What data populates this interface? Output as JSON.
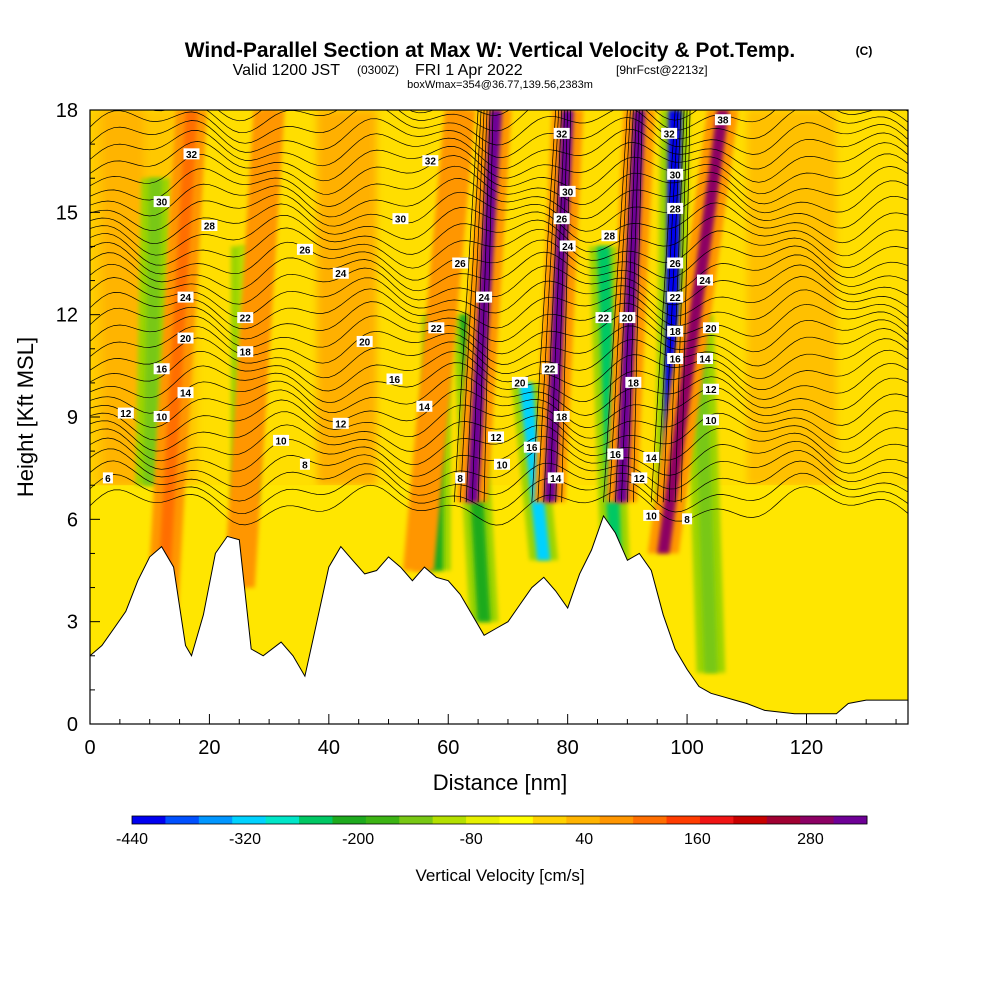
{
  "header": {
    "title": "Wind-Parallel Section at Max W: Vertical Velocity & Pot.Temp.",
    "copyright": "(C)",
    "valid_prefix": "Valid 1200 JST",
    "valid_utc": "(0300Z)",
    "valid_date": "FRI 1 Apr 2022",
    "forecast": "[9hrFcst@2213z]",
    "box_info": "boxWmax=354@36.77,139.56,2383m"
  },
  "chart_data": {
    "type": "heatmap",
    "title": "Wind-Parallel Section at Max W: Vertical Velocity & Pot.Temp.",
    "xlabel": "Distance [nm]",
    "ylabel": "Height [Kft MSL]",
    "xlim": [
      0,
      137
    ],
    "ylim": [
      0,
      18
    ],
    "x_ticks": [
      "0",
      "20",
      "40",
      "60",
      "80",
      "100",
      "120"
    ],
    "x_tick_values": [
      0,
      20,
      40,
      60,
      80,
      100,
      120
    ],
    "y_ticks": [
      "0",
      "3",
      "6",
      "9",
      "12",
      "15",
      "18"
    ],
    "y_tick_values": [
      0,
      3,
      6,
      9,
      12,
      15,
      18
    ],
    "colorbar": {
      "label": "Vertical Velocity [cm/s]",
      "tick_labels": [
        "-440",
        "-320",
        "-200",
        "-80",
        "40",
        "160",
        "280"
      ],
      "tick_values": [
        -440,
        -320,
        -200,
        -80,
        40,
        160,
        280
      ],
      "min": -440,
      "max": 340,
      "colors": [
        "#0000f0",
        "#0050ff",
        "#0096ff",
        "#00d2ff",
        "#00e6c8",
        "#00c864",
        "#1eaa1e",
        "#3cb414",
        "#78c814",
        "#b4e000",
        "#e6f000",
        "#ffff00",
        "#ffd200",
        "#ffb400",
        "#ff9600",
        "#ff6e00",
        "#ff3c00",
        "#f01414",
        "#c80000",
        "#a00032",
        "#8c0064",
        "#6e0096"
      ]
    },
    "terrain": [
      [
        0,
        2
      ],
      [
        2,
        2.3
      ],
      [
        4,
        2.8
      ],
      [
        6,
        3.3
      ],
      [
        8,
        4.2
      ],
      [
        10,
        4.9
      ],
      [
        12,
        5.2
      ],
      [
        14,
        4.6
      ],
      [
        16,
        2.3
      ],
      [
        17,
        2.0
      ],
      [
        19,
        3.2
      ],
      [
        21,
        5.0
      ],
      [
        23,
        5.5
      ],
      [
        25,
        5.4
      ],
      [
        27,
        2.2
      ],
      [
        29,
        2.0
      ],
      [
        32,
        2.4
      ],
      [
        34,
        2.0
      ],
      [
        36,
        1.4
      ],
      [
        38,
        3.0
      ],
      [
        40,
        4.6
      ],
      [
        42,
        5.2
      ],
      [
        44,
        4.8
      ],
      [
        46,
        4.4
      ],
      [
        48,
        4.5
      ],
      [
        50,
        4.9
      ],
      [
        52,
        4.6
      ],
      [
        54,
        4.2
      ],
      [
        56,
        4.6
      ],
      [
        58,
        4.3
      ],
      [
        60,
        4.2
      ],
      [
        62,
        3.8
      ],
      [
        64,
        3.2
      ],
      [
        66,
        2.6
      ],
      [
        68,
        2.8
      ],
      [
        70,
        3.0
      ],
      [
        72,
        3.5
      ],
      [
        74,
        4.0
      ],
      [
        76,
        4.3
      ],
      [
        78,
        3.9
      ],
      [
        80,
        3.4
      ],
      [
        82,
        4.4
      ],
      [
        84,
        5.1
      ],
      [
        86,
        6.1
      ],
      [
        88,
        5.6
      ],
      [
        90,
        4.8
      ],
      [
        92,
        5.0
      ],
      [
        94,
        4.5
      ],
      [
        96,
        3.2
      ],
      [
        98,
        2.2
      ],
      [
        100,
        1.6
      ],
      [
        102,
        1.1
      ],
      [
        104,
        0.9
      ],
      [
        106,
        0.8
      ],
      [
        108,
        0.7
      ],
      [
        110,
        0.6
      ],
      [
        113,
        0.4
      ],
      [
        118,
        0.3
      ],
      [
        125,
        0.3
      ],
      [
        127,
        0.6
      ],
      [
        130,
        0.7
      ],
      [
        137,
        0.7
      ]
    ],
    "updrafts": [
      {
        "x": 12,
        "x_top": 17,
        "y_bottom": 3.0,
        "y_top": 18,
        "value": 120
      },
      {
        "x": 25,
        "x_top": 30,
        "y_bottom": 4.0,
        "y_top": 18,
        "value": 90
      },
      {
        "x": 55,
        "x_top": 62,
        "y_bottom": 4.5,
        "y_top": 18,
        "value": 80
      },
      {
        "x": 64,
        "x_top": 68,
        "y_bottom": 6.5,
        "y_top": 18,
        "value": 340
      },
      {
        "x": 77,
        "x_top": 80,
        "y_bottom": 6.5,
        "y_top": 18,
        "value": 340
      },
      {
        "x": 89,
        "x_top": 92,
        "y_bottom": 6.5,
        "y_top": 18,
        "value": 340
      },
      {
        "x": 96,
        "x_top": 106,
        "y_bottom": 5.0,
        "y_top": 18,
        "value": 300
      }
    ],
    "downdrafts": [
      {
        "x": 10,
        "x_top": 11,
        "y_bottom": 7.0,
        "y_top": 16,
        "value": -140
      },
      {
        "x": 26,
        "x_top": 26,
        "y_bottom": 6.5,
        "y_top": 14,
        "value": -120
      },
      {
        "x": 58,
        "x_top": 58,
        "y_bottom": 4.5,
        "y_top": 12,
        "value": -200
      },
      {
        "x": 66,
        "x_top": 63,
        "y_bottom": 3.0,
        "y_top": 12,
        "value": -220
      },
      {
        "x": 76,
        "x_top": 73,
        "y_bottom": 4.8,
        "y_top": 10,
        "value": -320
      },
      {
        "x": 88,
        "x_top": 86,
        "y_bottom": 4.5,
        "y_top": 14,
        "value": -260
      },
      {
        "x": 97,
        "x_top": 98,
        "y_bottom": 6.0,
        "y_top": 18,
        "value": -440
      },
      {
        "x": 104,
        "x_top": 102,
        "y_bottom": 1.5,
        "y_top": 12,
        "value": -140
      }
    ],
    "theta_contour_labels": [
      {
        "text": "6",
        "x": 3,
        "y": 7.2
      },
      {
        "text": "8",
        "x": 36,
        "y": 7.6
      },
      {
        "text": "8",
        "x": 62,
        "y": 7.2
      },
      {
        "text": "8",
        "x": 100,
        "y": 6.0
      },
      {
        "text": "10",
        "x": 12,
        "y": 9.0
      },
      {
        "text": "10",
        "x": 32,
        "y": 8.3
      },
      {
        "text": "10",
        "x": 69,
        "y": 7.6
      },
      {
        "text": "10",
        "x": 94,
        "y": 6.1
      },
      {
        "text": "10",
        "x": 104,
        "y": 8.9
      },
      {
        "text": "12",
        "x": 6,
        "y": 9.1
      },
      {
        "text": "12",
        "x": 42,
        "y": 8.8
      },
      {
        "text": "12",
        "x": 68,
        "y": 8.4
      },
      {
        "text": "12",
        "x": 92,
        "y": 7.2
      },
      {
        "text": "12",
        "x": 104,
        "y": 9.8
      },
      {
        "text": "14",
        "x": 16,
        "y": 9.7
      },
      {
        "text": "14",
        "x": 56,
        "y": 9.3
      },
      {
        "text": "14",
        "x": 78,
        "y": 7.2
      },
      {
        "text": "14",
        "x": 94,
        "y": 7.8
      },
      {
        "text": "14",
        "x": 103,
        "y": 10.7
      },
      {
        "text": "16",
        "x": 12,
        "y": 10.4
      },
      {
        "text": "16",
        "x": 51,
        "y": 10.1
      },
      {
        "text": "16",
        "x": 74,
        "y": 8.1
      },
      {
        "text": "16",
        "x": 88,
        "y": 7.9
      },
      {
        "text": "16",
        "x": 98,
        "y": 10.7
      },
      {
        "text": "18",
        "x": 26,
        "y": 10.9
      },
      {
        "text": "18",
        "x": 79,
        "y": 9.0
      },
      {
        "text": "18",
        "x": 91,
        "y": 10.0
      },
      {
        "text": "18",
        "x": 98,
        "y": 11.5
      },
      {
        "text": "20",
        "x": 16,
        "y": 11.3
      },
      {
        "text": "20",
        "x": 46,
        "y": 11.2
      },
      {
        "text": "20",
        "x": 72,
        "y": 10.0
      },
      {
        "text": "20",
        "x": 90,
        "y": 11.9
      },
      {
        "text": "20",
        "x": 104,
        "y": 11.6
      },
      {
        "text": "22",
        "x": 26,
        "y": 11.9
      },
      {
        "text": "22",
        "x": 58,
        "y": 11.6
      },
      {
        "text": "22",
        "x": 77,
        "y": 10.4
      },
      {
        "text": "22",
        "x": 86,
        "y": 11.9
      },
      {
        "text": "22",
        "x": 98,
        "y": 12.5
      },
      {
        "text": "24",
        "x": 16,
        "y": 12.5
      },
      {
        "text": "24",
        "x": 42,
        "y": 13.2
      },
      {
        "text": "24",
        "x": 66,
        "y": 12.5
      },
      {
        "text": "24",
        "x": 80,
        "y": 14.0
      },
      {
        "text": "24",
        "x": 103,
        "y": 13.0
      },
      {
        "text": "26",
        "x": 36,
        "y": 13.9
      },
      {
        "text": "26",
        "x": 62,
        "y": 13.5
      },
      {
        "text": "26",
        "x": 79,
        "y": 14.8
      },
      {
        "text": "26",
        "x": 98,
        "y": 13.5
      },
      {
        "text": "28",
        "x": 20,
        "y": 14.6
      },
      {
        "text": "28",
        "x": 87,
        "y": 14.3
      },
      {
        "text": "28",
        "x": 98,
        "y": 15.1
      },
      {
        "text": "30",
        "x": 12,
        "y": 15.3
      },
      {
        "text": "30",
        "x": 52,
        "y": 14.8
      },
      {
        "text": "30",
        "x": 80,
        "y": 15.6
      },
      {
        "text": "30",
        "x": 98,
        "y": 16.1
      },
      {
        "text": "32",
        "x": 17,
        "y": 16.7
      },
      {
        "text": "32",
        "x": 57,
        "y": 16.5
      },
      {
        "text": "32",
        "x": 79,
        "y": 17.3
      },
      {
        "text": "32",
        "x": 97,
        "y": 17.3
      },
      {
        "text": "38",
        "x": 106,
        "y": 17.7
      }
    ]
  }
}
